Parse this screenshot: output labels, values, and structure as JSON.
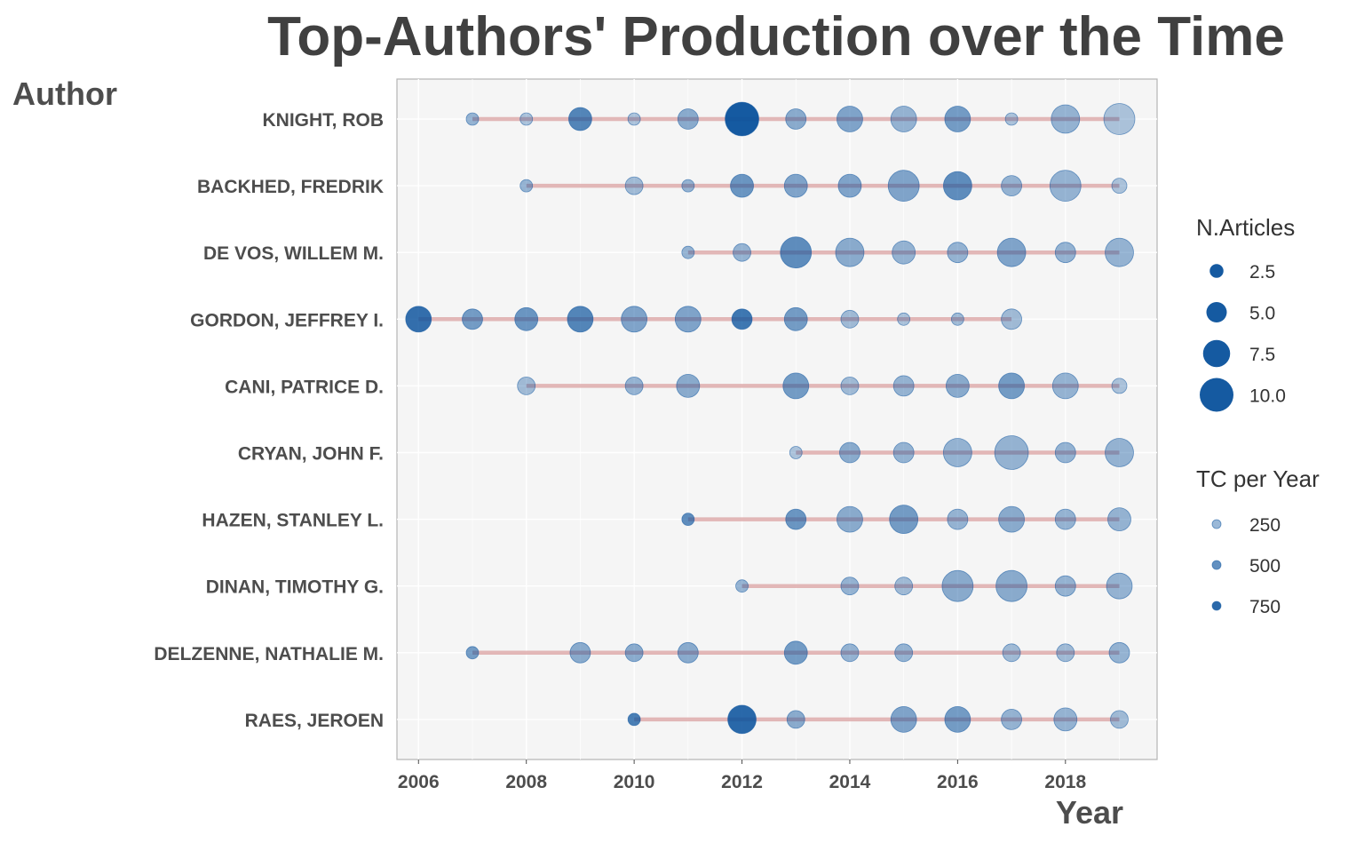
{
  "chart_data": {
    "type": "scatter",
    "title": "Top-Authors' Production over the Time",
    "xlabel": "Year",
    "ylabel": "Author",
    "xlim": [
      2005.6,
      2019.7
    ],
    "x_ticks": [
      2006,
      2008,
      2010,
      2012,
      2014,
      2016,
      2018
    ],
    "grid": true,
    "line_color": "#d9a0a0",
    "point_color": "#08519c",
    "panel_bg": "#f5f5f5",
    "authors": [
      {
        "name": "KNIGHT, ROB",
        "start": 2007,
        "end": 2019,
        "points": [
          [
            2007,
            2,
            250
          ],
          [
            2008,
            2,
            150
          ],
          [
            2009,
            6,
            550
          ],
          [
            2010,
            2,
            150
          ],
          [
            2011,
            5,
            300
          ],
          [
            2012,
            10,
            900
          ],
          [
            2013,
            5,
            300
          ],
          [
            2014,
            7,
            350
          ],
          [
            2015,
            7,
            250
          ],
          [
            2016,
            7,
            400
          ],
          [
            2017,
            2,
            150
          ],
          [
            2018,
            8,
            250
          ],
          [
            2019,
            9,
            150
          ]
        ]
      },
      {
        "name": "BACKHED, FREDRIK",
        "start": 2008,
        "end": 2019,
        "points": [
          [
            2008,
            2,
            250
          ],
          [
            2010,
            4,
            200
          ],
          [
            2011,
            2,
            250
          ],
          [
            2012,
            6,
            450
          ],
          [
            2013,
            6,
            350
          ],
          [
            2014,
            6,
            350
          ],
          [
            2015,
            9,
            350
          ],
          [
            2016,
            8,
            500
          ],
          [
            2017,
            5,
            250
          ],
          [
            2018,
            9,
            250
          ],
          [
            2019,
            3,
            150
          ]
        ]
      },
      {
        "name": "DE VOS, WILLEM M.",
        "start": 2011,
        "end": 2019,
        "points": [
          [
            2011,
            2,
            250
          ],
          [
            2012,
            4,
            250
          ],
          [
            2013,
            9,
            500
          ],
          [
            2014,
            8,
            300
          ],
          [
            2015,
            6,
            250
          ],
          [
            2016,
            5,
            250
          ],
          [
            2017,
            8,
            350
          ],
          [
            2018,
            5,
            250
          ],
          [
            2019,
            8,
            250
          ]
        ]
      },
      {
        "name": "GORDON, JEFFREY I.",
        "start": 2006,
        "end": 2017,
        "points": [
          [
            2006,
            7,
            700
          ],
          [
            2007,
            5,
            400
          ],
          [
            2008,
            6,
            450
          ],
          [
            2009,
            7,
            550
          ],
          [
            2010,
            7,
            350
          ],
          [
            2011,
            7,
            350
          ],
          [
            2012,
            5,
            650
          ],
          [
            2013,
            6,
            400
          ],
          [
            2014,
            4,
            200
          ],
          [
            2015,
            2,
            150
          ],
          [
            2016,
            2,
            200
          ],
          [
            2017,
            5,
            200
          ]
        ]
      },
      {
        "name": "CANI, PATRICE D.",
        "start": 2008,
        "end": 2019,
        "points": [
          [
            2008,
            4,
            200
          ],
          [
            2010,
            4,
            250
          ],
          [
            2011,
            6,
            300
          ],
          [
            2013,
            7,
            400
          ],
          [
            2014,
            4,
            200
          ],
          [
            2015,
            5,
            250
          ],
          [
            2016,
            6,
            300
          ],
          [
            2017,
            7,
            400
          ],
          [
            2018,
            7,
            250
          ],
          [
            2019,
            3,
            150
          ]
        ]
      },
      {
        "name": "CRYAN, JOHN F.",
        "start": 2013,
        "end": 2019,
        "points": [
          [
            2013,
            2,
            150
          ],
          [
            2014,
            5,
            300
          ],
          [
            2015,
            5,
            250
          ],
          [
            2016,
            8,
            250
          ],
          [
            2017,
            10,
            250
          ],
          [
            2018,
            5,
            250
          ],
          [
            2019,
            8,
            250
          ]
        ]
      },
      {
        "name": "HAZEN, STANLEY L.",
        "start": 2011,
        "end": 2019,
        "points": [
          [
            2011,
            2,
            500
          ],
          [
            2013,
            5,
            450
          ],
          [
            2014,
            7,
            300
          ],
          [
            2015,
            8,
            400
          ],
          [
            2016,
            5,
            250
          ],
          [
            2017,
            7,
            300
          ],
          [
            2018,
            5,
            250
          ],
          [
            2019,
            6,
            250
          ]
        ]
      },
      {
        "name": "DINAN, TIMOTHY G.",
        "start": 2012,
        "end": 2019,
        "points": [
          [
            2012,
            2,
            250
          ],
          [
            2014,
            4,
            250
          ],
          [
            2015,
            4,
            200
          ],
          [
            2016,
            9,
            300
          ],
          [
            2017,
            9,
            300
          ],
          [
            2018,
            5,
            250
          ],
          [
            2019,
            7,
            250
          ]
        ]
      },
      {
        "name": "DELZENNE, NATHALIE M.",
        "start": 2007,
        "end": 2019,
        "points": [
          [
            2007,
            2,
            400
          ],
          [
            2009,
            5,
            300
          ],
          [
            2010,
            4,
            300
          ],
          [
            2011,
            5,
            300
          ],
          [
            2013,
            6,
            400
          ],
          [
            2014,
            4,
            250
          ],
          [
            2015,
            4,
            250
          ],
          [
            2017,
            4,
            200
          ],
          [
            2018,
            4,
            200
          ],
          [
            2019,
            5,
            250
          ]
        ]
      },
      {
        "name": "RAES, JEROEN",
        "start": 2010,
        "end": 2019,
        "points": [
          [
            2010,
            2,
            600
          ],
          [
            2012,
            8,
            750
          ],
          [
            2013,
            4,
            300
          ],
          [
            2015,
            7,
            350
          ],
          [
            2016,
            7,
            400
          ],
          [
            2017,
            5,
            250
          ],
          [
            2018,
            6,
            250
          ],
          [
            2019,
            4,
            200
          ]
        ]
      }
    ],
    "legend_size": {
      "title": "N.Articles",
      "entries": [
        {
          "value": 2.5,
          "label": "2.5"
        },
        {
          "value": 5.0,
          "label": "5.0"
        },
        {
          "value": 7.5,
          "label": "7.5"
        },
        {
          "value": 10.0,
          "label": "10.0"
        }
      ]
    },
    "legend_color": {
      "title": "TC per Year",
      "entries": [
        {
          "value": 250,
          "label": "250"
        },
        {
          "value": 500,
          "label": "500"
        },
        {
          "value": 750,
          "label": "750"
        }
      ]
    },
    "legend_placement": "right"
  }
}
